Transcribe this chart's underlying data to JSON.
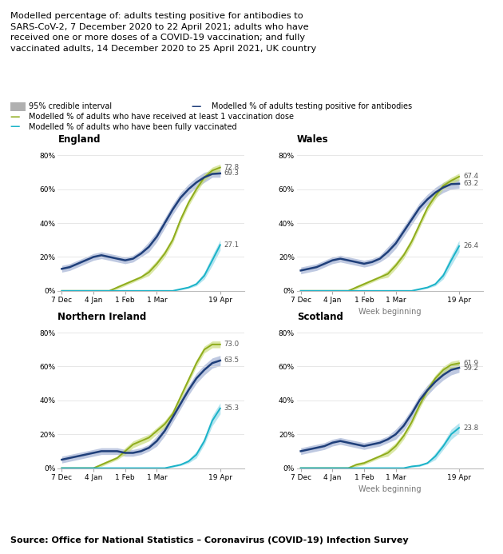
{
  "title_lines": [
    "Modelled percentage of: adults testing positive for antibodies to",
    "SARS-CoV-2, 7 December 2020 to 22 April 2021; adults who have",
    "received one or more doses of a COVID-19 vaccination; and fully",
    "vaccinated adults, 14 December 2020 to 25 April 2021, UK country"
  ],
  "source": "Source: Office for National Statistics – Coronavirus (COVID-19) Infection Survey",
  "legend": {
    "ci_label": "95% credible interval",
    "antibody_label": "Modelled % of adults testing positive for antibodies",
    "vax1_label": "Modelled % of adults who have received at least 1 vaccination dose",
    "fullvax_label": "Modelled % of adults who have been fully vaccinated"
  },
  "countries": [
    "England",
    "Wales",
    "Northern Ireland",
    "Scotland"
  ],
  "xtick_labels": [
    "7 Dec",
    "4 Jan",
    "1 Feb",
    "1 Mar",
    "19 Apr"
  ],
  "xlabel": "Week beginning",
  "colors": {
    "antibody_line": "#1f3f7a",
    "antibody_ci": "#aab8d8",
    "vax1_line": "#8fac1c",
    "vax1_ci": "#c8dc78",
    "fullvax_line": "#1ab3c8",
    "fullvax_ci": "#90d8e8",
    "ci_box": "#b0b0b0"
  },
  "end_labels": {
    "England": {
      "antibody": 69.3,
      "vax1": 72.8,
      "fullvax": 27.1
    },
    "Wales": {
      "antibody": 63.2,
      "vax1": 67.4,
      "fullvax": 26.4
    },
    "Northern Ireland": {
      "antibody": 63.5,
      "vax1": 73.0,
      "fullvax": 35.3
    },
    "Scotland": {
      "antibody": 59.2,
      "vax1": 61.9,
      "fullvax": 23.8
    }
  },
  "data": {
    "England": {
      "x": [
        0,
        1,
        2,
        3,
        4,
        5,
        6,
        7,
        8,
        9,
        10,
        11,
        12,
        13,
        14,
        15,
        16,
        17,
        18,
        19,
        20
      ],
      "antibody": [
        13,
        14,
        16,
        18,
        20,
        21,
        20,
        19,
        18,
        19,
        22,
        26,
        32,
        40,
        48,
        55,
        60,
        64,
        67,
        69,
        69.3
      ],
      "antibody_lo": [
        11,
        12,
        14,
        16,
        18,
        19,
        18,
        17,
        16,
        17,
        20,
        23,
        29,
        37,
        45,
        52,
        57,
        61,
        64,
        67,
        67.0
      ],
      "antibody_hi": [
        15,
        16,
        18,
        20,
        22,
        23,
        22,
        21,
        20,
        21,
        24,
        29,
        35,
        43,
        51,
        58,
        63,
        67,
        70,
        71,
        71.5
      ],
      "vax1": [
        0,
        0,
        0,
        0,
        0,
        0,
        0,
        2,
        4,
        6,
        8,
        11,
        16,
        22,
        30,
        42,
        52,
        60,
        67,
        71,
        72.8
      ],
      "vax1_lo": [
        0,
        0,
        0,
        0,
        0,
        0,
        0,
        1,
        3,
        5,
        7,
        9,
        14,
        20,
        28,
        40,
        50,
        58,
        65,
        69,
        70.8
      ],
      "vax1_hi": [
        0,
        0,
        0,
        0,
        0,
        0,
        0,
        3,
        5,
        7,
        9,
        13,
        18,
        24,
        32,
        44,
        54,
        62,
        69,
        73,
        74.8
      ],
      "fullvax": [
        0,
        0,
        0,
        0,
        0,
        0,
        0,
        0,
        0,
        0,
        0,
        0,
        0,
        0,
        0,
        1,
        2,
        4,
        9,
        18,
        27.1
      ],
      "fullvax_lo": [
        0,
        0,
        0,
        0,
        0,
        0,
        0,
        0,
        0,
        0,
        0,
        0,
        0,
        0,
        0,
        0.5,
        1.5,
        3,
        7,
        15,
        24.0
      ],
      "fullvax_hi": [
        0,
        0,
        0,
        0,
        0,
        0,
        0,
        0,
        0,
        0,
        0,
        0,
        0,
        0,
        0,
        1.5,
        2.5,
        5,
        11,
        21,
        30.0
      ]
    },
    "Wales": {
      "x": [
        0,
        1,
        2,
        3,
        4,
        5,
        6,
        7,
        8,
        9,
        10,
        11,
        12,
        13,
        14,
        15,
        16,
        17,
        18,
        19,
        20
      ],
      "antibody": [
        12,
        13,
        14,
        16,
        18,
        19,
        18,
        17,
        16,
        17,
        19,
        23,
        28,
        35,
        42,
        49,
        54,
        58,
        61,
        63,
        63.2
      ],
      "antibody_lo": [
        10,
        11,
        12,
        14,
        16,
        17,
        16,
        15,
        14,
        15,
        17,
        20,
        25,
        32,
        39,
        46,
        51,
        55,
        58,
        60,
        60.5
      ],
      "antibody_hi": [
        14,
        15,
        16,
        18,
        20,
        21,
        20,
        19,
        18,
        19,
        21,
        26,
        31,
        38,
        45,
        52,
        57,
        61,
        64,
        66,
        65.9
      ],
      "vax1": [
        0,
        0,
        0,
        0,
        0,
        0,
        0,
        2,
        4,
        6,
        8,
        10,
        15,
        21,
        29,
        39,
        49,
        56,
        62,
        65,
        67.4
      ],
      "vax1_lo": [
        0,
        0,
        0,
        0,
        0,
        0,
        0,
        1,
        3,
        5,
        7,
        8,
        13,
        19,
        27,
        37,
        47,
        54,
        60,
        63,
        65.4
      ],
      "vax1_hi": [
        0,
        0,
        0,
        0,
        0,
        0,
        0,
        3,
        5,
        7,
        9,
        12,
        17,
        23,
        31,
        41,
        51,
        58,
        64,
        67,
        69.4
      ],
      "fullvax": [
        0,
        0,
        0,
        0,
        0,
        0,
        0,
        0,
        0,
        0,
        0,
        0,
        0,
        0,
        0,
        1,
        2,
        4,
        9,
        18,
        26.4
      ],
      "fullvax_lo": [
        0,
        0,
        0,
        0,
        0,
        0,
        0,
        0,
        0,
        0,
        0,
        0,
        0,
        0,
        0,
        0.5,
        1.5,
        3,
        7,
        15,
        23.0
      ],
      "fullvax_hi": [
        0,
        0,
        0,
        0,
        0,
        0,
        0,
        0,
        0,
        0,
        0,
        0,
        0,
        0,
        0,
        1.5,
        2.5,
        5,
        11,
        21,
        29.8
      ]
    },
    "Northern Ireland": {
      "x": [
        0,
        1,
        2,
        3,
        4,
        5,
        6,
        7,
        8,
        9,
        10,
        11,
        12,
        13,
        14,
        15,
        16,
        17,
        18,
        19,
        20
      ],
      "antibody": [
        5,
        6,
        7,
        8,
        9,
        10,
        10,
        10,
        9,
        9,
        10,
        12,
        16,
        22,
        30,
        38,
        46,
        53,
        58,
        62,
        63.5
      ],
      "antibody_lo": [
        3,
        4,
        5,
        6,
        7,
        8,
        8,
        8,
        7,
        7,
        8,
        10,
        13,
        19,
        27,
        35,
        43,
        50,
        55,
        59,
        60.5
      ],
      "antibody_hi": [
        7,
        8,
        9,
        10,
        11,
        12,
        12,
        12,
        11,
        11,
        12,
        14,
        19,
        25,
        33,
        41,
        49,
        56,
        61,
        65,
        66.5
      ],
      "vax1": [
        0,
        0,
        0,
        0,
        0,
        2,
        4,
        6,
        10,
        14,
        16,
        18,
        22,
        26,
        32,
        42,
        52,
        62,
        70,
        73,
        73.0
      ],
      "vax1_lo": [
        0,
        0,
        0,
        0,
        0,
        1,
        3,
        5,
        8,
        12,
        14,
        16,
        20,
        24,
        30,
        40,
        50,
        60,
        68,
        71,
        71.0
      ],
      "vax1_hi": [
        0,
        0,
        0,
        0,
        0,
        3,
        5,
        7,
        12,
        16,
        18,
        20,
        24,
        28,
        34,
        44,
        54,
        64,
        72,
        75,
        75.0
      ],
      "fullvax": [
        0,
        0,
        0,
        0,
        0,
        0,
        0,
        0,
        0,
        0,
        0,
        0,
        0,
        0,
        1,
        2,
        4,
        8,
        16,
        28,
        35.3
      ],
      "fullvax_lo": [
        0,
        0,
        0,
        0,
        0,
        0,
        0,
        0,
        0,
        0,
        0,
        0,
        0,
        0,
        0.5,
        1.5,
        3,
        6,
        14,
        25,
        32.0
      ],
      "fullvax_hi": [
        0,
        0,
        0,
        0,
        0,
        0,
        0,
        0,
        0,
        0,
        0,
        0,
        0,
        0,
        1.5,
        2.5,
        5,
        10,
        18,
        31,
        38.5
      ]
    },
    "Scotland": {
      "x": [
        0,
        1,
        2,
        3,
        4,
        5,
        6,
        7,
        8,
        9,
        10,
        11,
        12,
        13,
        14,
        15,
        16,
        17,
        18,
        19,
        20
      ],
      "antibody": [
        10,
        11,
        12,
        13,
        15,
        16,
        15,
        14,
        13,
        14,
        15,
        17,
        20,
        25,
        32,
        40,
        46,
        51,
        55,
        58,
        59.2
      ],
      "antibody_lo": [
        8,
        9,
        10,
        11,
        13,
        14,
        13,
        12,
        11,
        12,
        13,
        15,
        17,
        22,
        29,
        37,
        43,
        48,
        52,
        55,
        56.5
      ],
      "antibody_hi": [
        12,
        13,
        14,
        15,
        17,
        18,
        17,
        16,
        15,
        16,
        17,
        19,
        23,
        28,
        35,
        43,
        49,
        54,
        58,
        61,
        61.9
      ],
      "vax1": [
        0,
        0,
        0,
        0,
        0,
        0,
        0,
        2,
        3,
        5,
        7,
        9,
        13,
        19,
        27,
        37,
        46,
        53,
        58,
        61,
        61.9
      ],
      "vax1_lo": [
        0,
        0,
        0,
        0,
        0,
        0,
        0,
        1,
        2,
        4,
        6,
        7,
        11,
        17,
        25,
        35,
        44,
        51,
        56,
        59,
        59.9
      ],
      "vax1_hi": [
        0,
        0,
        0,
        0,
        0,
        0,
        0,
        3,
        4,
        6,
        8,
        11,
        15,
        21,
        29,
        39,
        48,
        55,
        60,
        63,
        63.9
      ],
      "fullvax": [
        0,
        0,
        0,
        0,
        0,
        0,
        0,
        0,
        0,
        0,
        0,
        0,
        0,
        0,
        1,
        1.5,
        3,
        7,
        13,
        20,
        23.8
      ],
      "fullvax_lo": [
        0,
        0,
        0,
        0,
        0,
        0,
        0,
        0,
        0,
        0,
        0,
        0,
        0,
        0,
        0.5,
        1,
        2.5,
        5,
        11,
        17,
        20.8
      ],
      "fullvax_hi": [
        0,
        0,
        0,
        0,
        0,
        0,
        0,
        0,
        0,
        0,
        0,
        0,
        0,
        0,
        1.5,
        2,
        3.5,
        9,
        15,
        23,
        26.8
      ]
    }
  }
}
